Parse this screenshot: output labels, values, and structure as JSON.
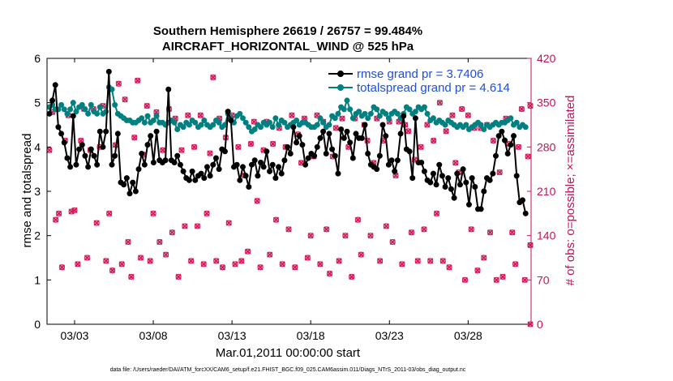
{
  "chart_data": {
    "type": "line",
    "title_line1": "Southern Hemisphere 26619 / 26757 = 99.484%",
    "title_line2": "AIRCRAFT_HORIZONTAL_WIND @ 525 hPa",
    "xlabel": "Mar.01,2011 00:00:00 start",
    "ylabel_left": "rmse and totalspread",
    "ylabel_right": "# of obs: o=possible; ×=assimilated",
    "footer": "data file: /Users/raeder/DAI/ATM_forcXX/CAM6_setup/f.e21.FHIST_BGC.f09_025.CAM6assim.011/Diags_NTrS_2011-03/obs_diag_output.nc",
    "xlim": [
      1.25,
      32.0
    ],
    "ylim_left": [
      0,
      6
    ],
    "ylim_right": [
      0,
      420
    ],
    "x_ticks": [
      3,
      8,
      13,
      18,
      23,
      28
    ],
    "x_tick_labels": [
      "03/03",
      "03/08",
      "03/13",
      "03/18",
      "03/23",
      "03/28"
    ],
    "y_ticks_left": [
      0,
      1,
      2,
      3,
      4,
      5,
      6
    ],
    "y_ticks_right": [
      0,
      70,
      140,
      210,
      280,
      350,
      420
    ],
    "colors": {
      "rmse": "#000000",
      "spread": "#008080",
      "obs": "#d01c5b",
      "axis_right": "#c0135a",
      "legend_text": "#1f4fd8"
    },
    "series": [
      {
        "name": "rmse grand pr = 3.7406",
        "values": [
          4.75,
          5.05,
          5.4,
          4.45,
          4.3,
          4.1,
          3.75,
          3.55,
          4.7,
          3.6,
          3.95,
          4.05,
          3.8,
          3.55,
          3.95,
          3.8,
          3.6,
          4.35,
          4.0,
          4.35,
          5.7,
          3.6,
          3.8,
          4.3,
          3.2,
          3.15,
          3.3,
          2.95,
          3.2,
          3.0,
          3.5,
          3.85,
          3.6,
          4.05,
          4.25,
          3.65,
          4.35,
          3.7,
          3.65,
          3.7,
          5.3,
          3.7,
          3.65,
          3.8,
          3.6,
          3.45,
          3.3,
          3.25,
          3.45,
          3.25,
          3.35,
          3.4,
          3.3,
          3.55,
          3.35,
          3.6,
          3.75,
          3.5,
          3.95,
          3.9,
          4.8,
          4.6,
          3.55,
          3.6,
          3.25,
          3.55,
          3.35,
          3.1,
          3.6,
          3.7,
          3.35,
          3.65,
          3.55,
          3.9,
          3.45,
          3.6,
          3.3,
          3.55,
          3.4,
          3.7,
          4.0,
          3.85,
          4.45,
          4.1,
          4.25,
          4.05,
          3.6,
          3.75,
          3.85,
          3.8,
          4.0,
          4.2,
          4.35,
          3.85,
          4.3,
          3.95,
          3.8,
          3.4,
          4.4,
          4.2,
          4.35,
          4.1,
          3.75,
          4.3,
          4.2,
          4.2,
          4.5,
          3.85,
          3.6,
          3.55,
          3.5,
          3.8,
          4.5,
          4.25,
          3.6,
          3.7,
          3.45,
          3.7,
          4.3,
          4.7,
          3.95,
          3.9,
          3.3,
          4.65,
          3.65,
          3.65,
          3.45,
          3.25,
          3.2,
          3.4,
          3.15,
          3.6,
          3.35,
          3.1,
          3.3,
          3.05,
          2.85,
          3.4,
          3.15,
          3.5,
          3.2,
          2.7,
          3.3,
          3.1,
          2.6,
          2.6,
          3.0,
          3.3,
          3.25,
          3.4,
          3.8,
          4.25,
          4.35,
          4.15,
          3.85,
          4.05,
          4.25,
          3.35,
          2.75,
          2.8,
          2.5
        ]
      },
      {
        "name": "totalspread grand pr = 4.614",
        "values": [
          4.9,
          4.95,
          4.85,
          4.85,
          4.95,
          4.85,
          4.75,
          4.85,
          5.0,
          4.8,
          4.9,
          4.95,
          4.85,
          4.75,
          4.95,
          4.8,
          4.75,
          4.9,
          4.75,
          4.8,
          5.35,
          5.3,
          4.95,
          4.75,
          4.7,
          4.65,
          4.6,
          4.6,
          4.55,
          4.55,
          4.6,
          4.65,
          4.55,
          4.7,
          4.55,
          4.6,
          4.7,
          4.55,
          4.55,
          4.5,
          4.55,
          4.6,
          4.55,
          4.4,
          4.5,
          4.45,
          4.55,
          4.5,
          4.6,
          4.55,
          4.45,
          4.5,
          4.6,
          4.5,
          4.45,
          4.5,
          4.6,
          4.55,
          4.45,
          4.5,
          4.75,
          4.65,
          4.55,
          4.7,
          4.75,
          4.65,
          4.55,
          4.45,
          4.35,
          4.4,
          4.5,
          4.45,
          4.55,
          4.5,
          4.55,
          4.45,
          4.65,
          4.5,
          4.6,
          4.55,
          4.45,
          4.5,
          4.55,
          4.6,
          4.5,
          4.55,
          4.55,
          4.5,
          4.45,
          4.45,
          4.5,
          4.65,
          4.55,
          4.45,
          4.5,
          4.7,
          4.65,
          4.75,
          4.9,
          4.85,
          5.05,
          4.85,
          4.65,
          4.75,
          4.8,
          4.7,
          4.75,
          4.65,
          4.75,
          4.9,
          4.85,
          4.7,
          4.8,
          4.75,
          4.65,
          4.75,
          4.8,
          4.75,
          4.65,
          4.75,
          4.9,
          4.85,
          4.75,
          4.8,
          4.9,
          4.85,
          4.9,
          4.75,
          4.6,
          4.65,
          4.55,
          4.6,
          4.55,
          4.5,
          4.6,
          4.55,
          4.5,
          4.45,
          4.5,
          4.45,
          4.5,
          4.4,
          4.45,
          4.5,
          4.55,
          4.5,
          4.4,
          4.5,
          4.45,
          4.5,
          4.55,
          4.5,
          4.55,
          4.55,
          4.6,
          4.65,
          4.5,
          4.55,
          4.45,
          4.5,
          4.45
        ]
      }
    ],
    "obs_counts": [
      275,
      335,
      165,
      175,
      90,
      290,
      330,
      178,
      180,
      95,
      290,
      340,
      105,
      275,
      340,
      160,
      280,
      345,
      100,
      175,
      85,
      283,
      380,
      95,
      355,
      130,
      75,
      295,
      385,
      105,
      268,
      345,
      100,
      175,
      335,
      130,
      275,
      110,
      340,
      145,
      325,
      75,
      275,
      155,
      330,
      100,
      280,
      155,
      330,
      95,
      175,
      270,
      390,
      100,
      325,
      90,
      295,
      160,
      330,
      95,
      280,
      100,
      235,
      115,
      285,
      320,
      195,
      90,
      275,
      320,
      110,
      285,
      165,
      310,
      95,
      280,
      150,
      330,
      90,
      300,
      255,
      325,
      105,
      140,
      265,
      330,
      95,
      320,
      150,
      80,
      265,
      310,
      100,
      325,
      140,
      280,
      75,
      325,
      165,
      110,
      315,
      290,
      140,
      255,
      325,
      100,
      290,
      155,
      320,
      130,
      235,
      320,
      95,
      315,
      305,
      145,
      260,
      100,
      280,
      150,
      315,
      100,
      290,
      175,
      350,
      100,
      305,
      90,
      330,
      255,
      240,
      340,
      70,
      330,
      150,
      310,
      85,
      310,
      105,
      315,
      145,
      290,
      70,
      240,
      75,
      325,
      285,
      145,
      95,
      280,
      340,
      70,
      265,
      125,
      345,
      125,
      0
    ],
    "obs_x": [
      1.4,
      1.6,
      1.8,
      2.0,
      2.2,
      2.4,
      2.6,
      2.8,
      3.0,
      3.2,
      3.4,
      3.6,
      3.8,
      4.0,
      4.2,
      4.4,
      4.6,
      4.8,
      5.0,
      5.2,
      5.4,
      5.6,
      5.8,
      6.0,
      6.2,
      6.4,
      6.6,
      6.8,
      7.0,
      7.2,
      7.4,
      7.6,
      7.8,
      8.0,
      8.2,
      8.4,
      8.6,
      8.8,
      9.0,
      9.2,
      9.4,
      9.6,
      9.8,
      10.0,
      10.2,
      10.4,
      10.6,
      10.8,
      11.0,
      11.2,
      11.4,
      11.6,
      11.8,
      12.0,
      12.2,
      12.4,
      12.6,
      12.8,
      13.0,
      13.2,
      13.4,
      13.6,
      13.8,
      14.0,
      14.2,
      14.4,
      14.6,
      14.8,
      15.0,
      15.2,
      15.4,
      15.6,
      15.8,
      16.0,
      16.2,
      16.4,
      16.6,
      16.8,
      17.0,
      17.2,
      17.4,
      17.6,
      17.8,
      18.0,
      18.2,
      18.4,
      18.6,
      18.8,
      19.0,
      19.2,
      19.4,
      19.6,
      19.8,
      20.0,
      20.2,
      20.4,
      20.6,
      20.8,
      21.0,
      21.2,
      21.4,
      21.6,
      21.8,
      22.0,
      22.2,
      22.4,
      22.6,
      22.8,
      23.0,
      23.2,
      23.4,
      23.6,
      23.8,
      24.0,
      24.2,
      24.4,
      24.6,
      24.8,
      25.0,
      25.2,
      25.4,
      25.6,
      25.8,
      26.0,
      26.2,
      26.4,
      26.6,
      26.8,
      27.0,
      27.2,
      27.4,
      27.6,
      27.8,
      28.0,
      28.2,
      28.4,
      28.6,
      28.8,
      29.0,
      29.2,
      29.4,
      29.6,
      29.8,
      30.0,
      30.2,
      30.4,
      30.6,
      30.8,
      31.0,
      31.2,
      31.4,
      31.6,
      31.8,
      31.95,
      31.95,
      31.95,
      31.95
    ],
    "x_start": 1.4,
    "x_step": 0.19
  }
}
